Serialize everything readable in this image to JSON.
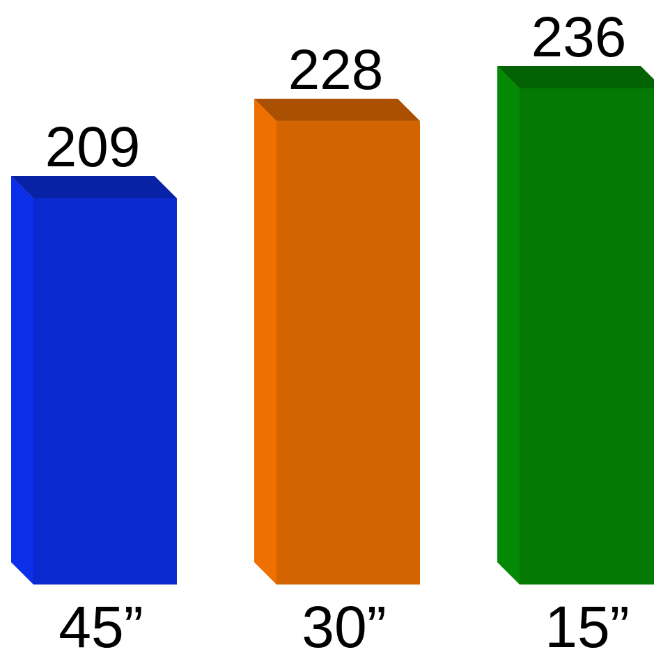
{
  "chart_data": {
    "type": "bar",
    "style": "3d",
    "categories": [
      "45”",
      "30”",
      "15”"
    ],
    "values": [
      209,
      228,
      236
    ],
    "colors": [
      "#0a2acf",
      "#d46400",
      "#047a04"
    ],
    "ylim": [
      0,
      236
    ],
    "grid": false,
    "legend": "none"
  }
}
